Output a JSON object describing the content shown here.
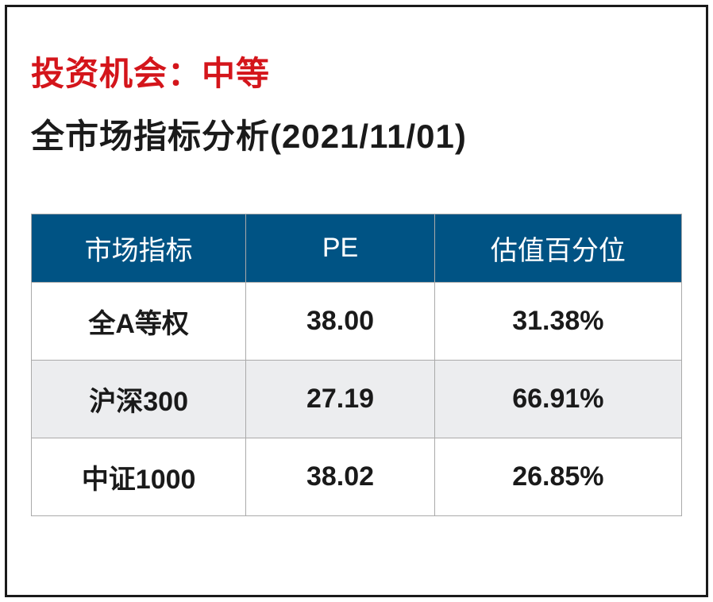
{
  "heading_red": "投资机会：中等",
  "heading_black": "全市场指标分析(2021/11/01)",
  "colors": {
    "red_text": "#d4151b",
    "black_text": "#1a1a1a",
    "header_bg": "#005384",
    "header_text": "#ffffff",
    "row_odd_bg": "#ffffff",
    "row_even_bg": "#ecedef",
    "border": "#aaaaaa"
  },
  "table": {
    "columns": [
      "市场指标",
      "PE",
      "估值百分位"
    ],
    "rows": [
      [
        "全A等权",
        "38.00",
        "31.38%"
      ],
      [
        "沪深300",
        "27.19",
        "66.91%"
      ],
      [
        "中证1000",
        "38.02",
        "26.85%"
      ]
    ]
  }
}
